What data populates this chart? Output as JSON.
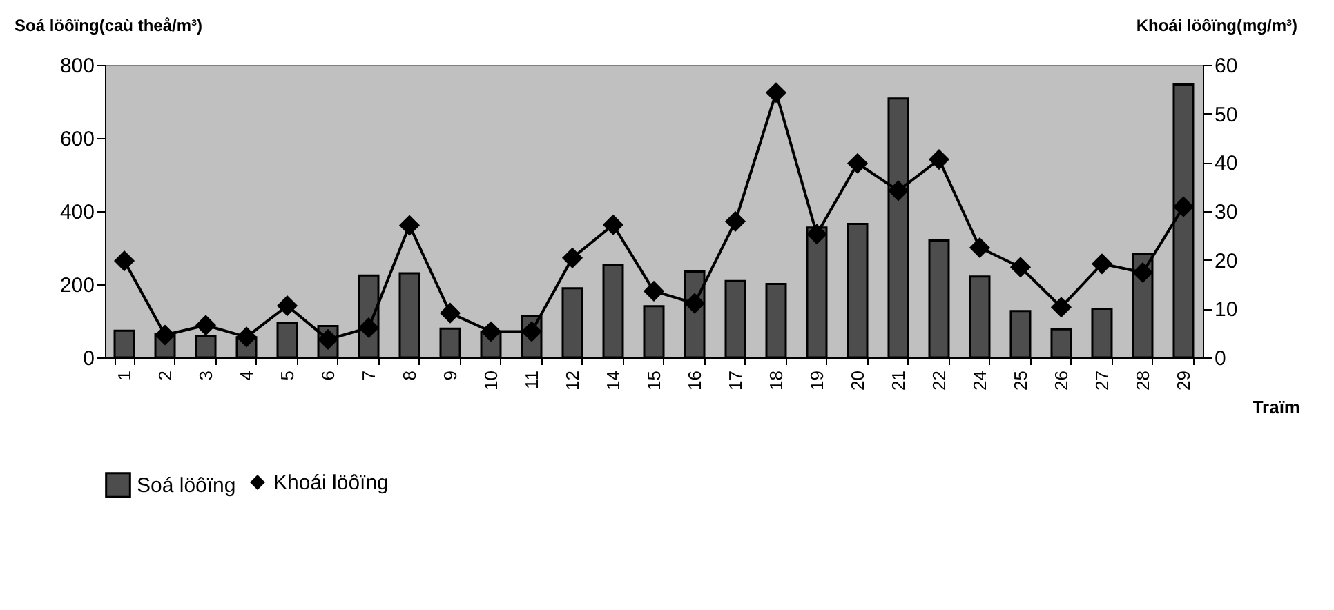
{
  "chart_data": {
    "type": "bar",
    "ylabel": "Soá löôïng(caù theå/m³)",
    "y2label": "Khoái löôïng(mg/m³)",
    "xlabel": "Traïm",
    "categories": [
      "1",
      "2",
      "3",
      "4",
      "5",
      "6",
      "7",
      "8",
      "9",
      "10",
      "11",
      "12",
      "14",
      "15",
      "16",
      "17",
      "18",
      "19",
      "20",
      "21",
      "22",
      "24",
      "25",
      "26",
      "27",
      "28",
      "29"
    ],
    "series": [
      {
        "name": "Soá löôïng",
        "color": "#4d4d4d",
        "values": [
          73,
          65,
          58,
          55,
          94,
          86,
          224,
          230,
          79,
          70,
          113,
          189,
          254,
          140,
          235,
          209,
          201,
          355,
          365,
          708,
          320,
          221,
          127,
          77,
          133,
          282,
          746
        ]
      },
      {
        "name": "Khoái löôïng",
        "type": "line",
        "axis": "y2",
        "color": "#000000",
        "marker": "diamond",
        "values": [
          19.8,
          4.6,
          6.6,
          4.2,
          10.6,
          3.7,
          6.1,
          27.1,
          9.1,
          5.3,
          5.3,
          20.4,
          27.2,
          13.6,
          11.1,
          27.9,
          54.3,
          25.3,
          39.8,
          34.2,
          40.6,
          22.5,
          18.5,
          10.3,
          19.2,
          17.4,
          30.9
        ]
      }
    ],
    "ylim": [
      0,
      800
    ],
    "yticks": [
      0,
      200,
      400,
      600,
      800
    ],
    "y2lim": [
      0,
      60
    ],
    "y2ticks": [
      0,
      10,
      20,
      30,
      40,
      50,
      60
    ],
    "grid": false,
    "legend": "bottom"
  }
}
